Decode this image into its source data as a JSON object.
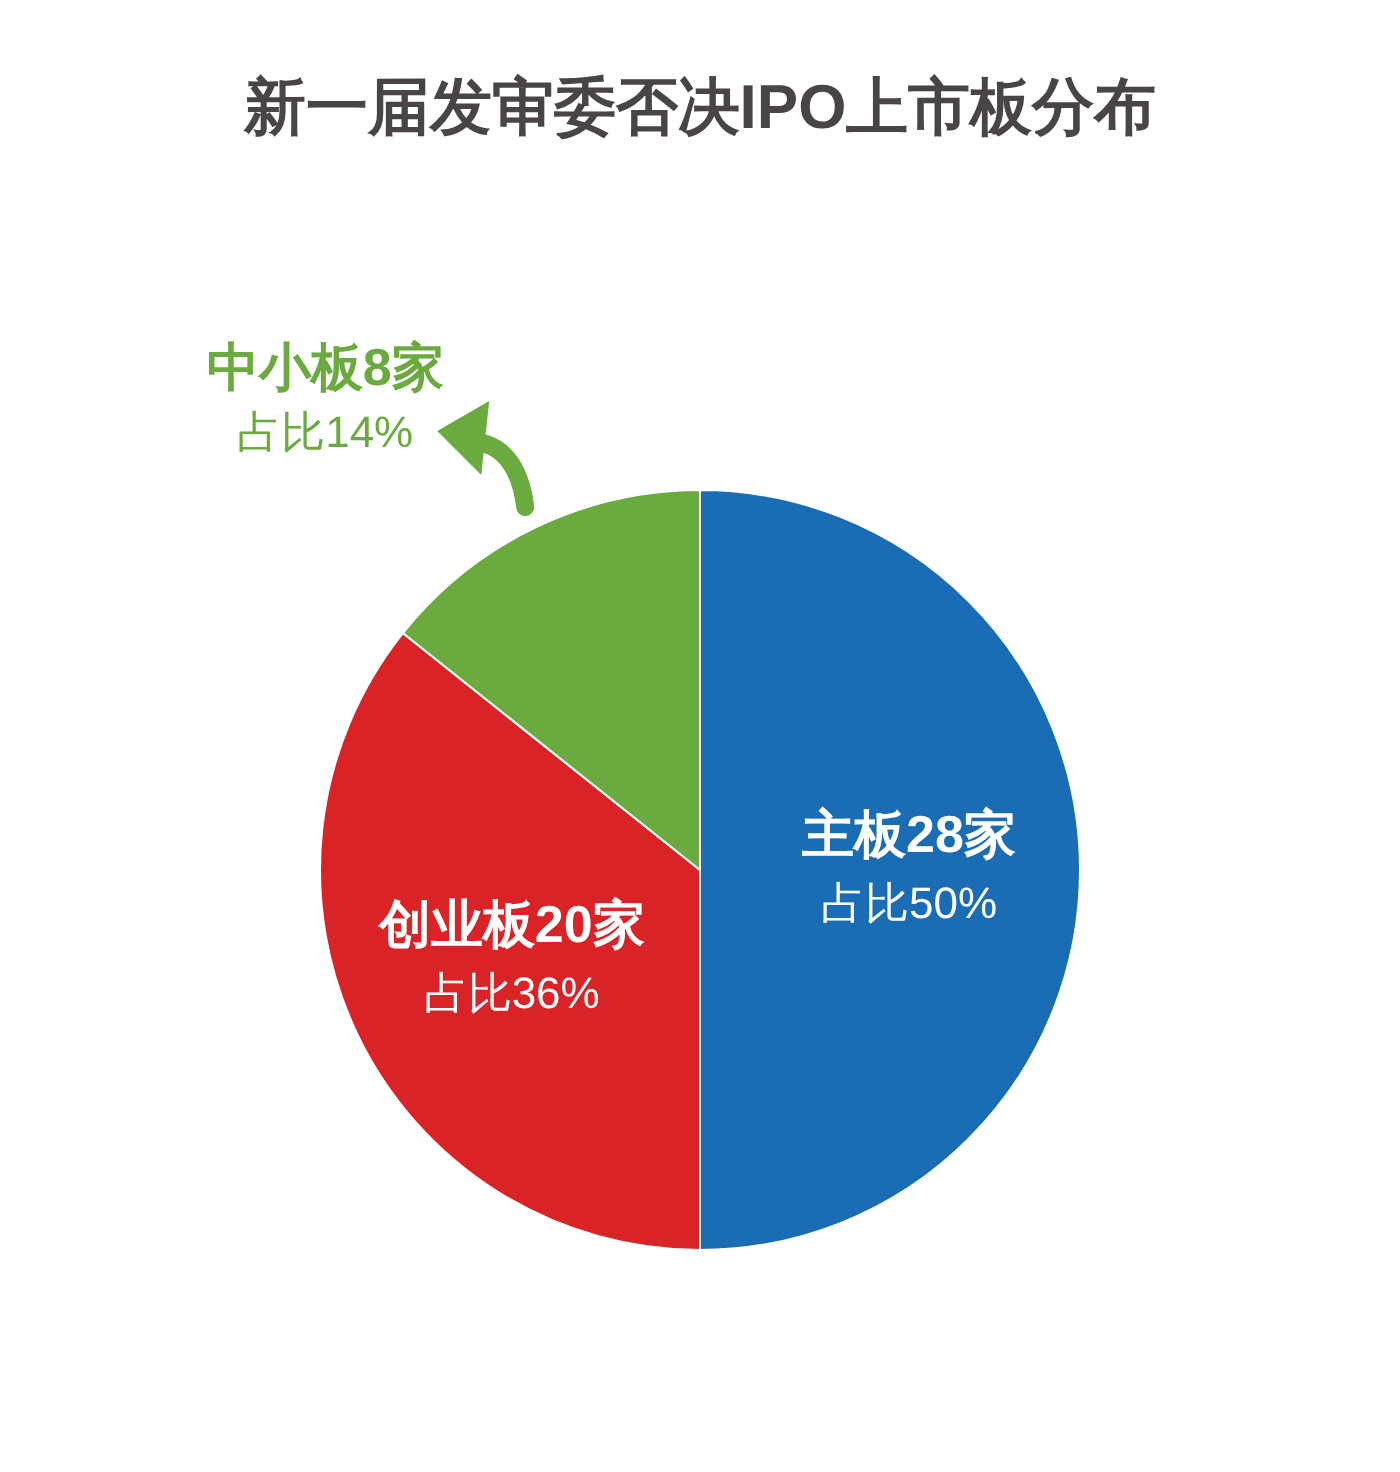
{
  "chart_data": {
    "type": "pie",
    "title": "新一届发审委否决IPO上市板分布",
    "categories": [
      "主板28家",
      "创业板20家",
      "中小板8家"
    ],
    "values": [
      28,
      20,
      8
    ],
    "colors": [
      "#1a6db5",
      "#d92327",
      "#6aaa3f"
    ],
    "value_labels": [
      "占比50%",
      "占比36%",
      "占比14%"
    ]
  }
}
